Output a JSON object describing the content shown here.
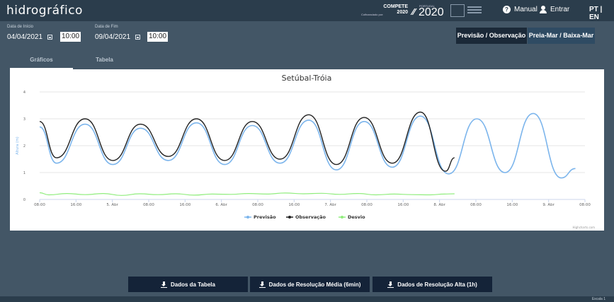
{
  "header": {
    "logo": "hidrográfico",
    "compete_line1": "COMPETE",
    "compete_line2": "2020",
    "compete_small": "Cofinanciado por:",
    "portugal_small": "PORTUGAL",
    "portugal_2020": "2020",
    "manual": "Manual",
    "entrar": "Entrar",
    "lang": "PT | EN"
  },
  "filters": {
    "start_label": "Data de Início",
    "start_date": "04/04/2021",
    "start_time": "10:00",
    "end_label": "Data de Fim",
    "end_date": "09/04/2021",
    "end_time": "10:00"
  },
  "mode_buttons": {
    "prev": "Previsão / Observação",
    "preia": "Preia-Mar / Baixa-Mar"
  },
  "tabs": {
    "graficos": "Gráficos",
    "tabela": "Tabela"
  },
  "downloads": {
    "tabela": "Dados da Tabela",
    "media": "Dados de Resolução Média (6min)",
    "alta": "Dados de Resolução Alta (1h)"
  },
  "footer": {
    "escala": "Escala 1"
  },
  "colors": {
    "previsao": "#7cb5ec",
    "observacao": "#222222",
    "desvio": "#90ed7d",
    "topbar": "#2b3d4c",
    "background": "#435666"
  },
  "chart_data": {
    "type": "line",
    "title": "Setúbal-Tróia",
    "ylabel": "Altura (m)",
    "credits": "Highcharts.com",
    "ylim": [
      0,
      4
    ],
    "y_ticks": [
      "0",
      "1",
      "2",
      "3",
      "4"
    ],
    "x_ticks": [
      "08:00",
      "16:00",
      "5. Abr",
      "08:00",
      "16:00",
      "6. Abr",
      "08:00",
      "16:00",
      "7. Abr",
      "08:00",
      "16:00",
      "8. Abr",
      "08:00",
      "16:00",
      "9. Abr",
      "08:00"
    ],
    "x_start": "2021-04-04 08:00",
    "x_end": "2021-04-09 08:00",
    "legend": [
      "Previsão",
      "Observação",
      "Desvio"
    ],
    "legend_position": "bottom-center",
    "series": [
      {
        "name": "Previsão",
        "points": [
          [
            0.0,
            2.7
          ],
          [
            3.7,
            1.35
          ],
          [
            10.0,
            2.8
          ],
          [
            16.1,
            1.3
          ],
          [
            22.2,
            2.65
          ],
          [
            28.3,
            1.45
          ],
          [
            34.5,
            2.85
          ],
          [
            40.7,
            1.3
          ],
          [
            46.8,
            2.75
          ],
          [
            52.9,
            1.35
          ],
          [
            59.2,
            2.95
          ],
          [
            65.3,
            1.1
          ],
          [
            71.4,
            2.9
          ],
          [
            77.6,
            1.2
          ],
          [
            83.8,
            3.1
          ],
          [
            90.0,
            0.95
          ],
          [
            96.2,
            3.0
          ],
          [
            102.4,
            1.0
          ],
          [
            108.6,
            3.2
          ],
          [
            114.8,
            0.8
          ],
          [
            117.9,
            1.15
          ]
        ]
      },
      {
        "name": "Observação",
        "points": [
          [
            0.0,
            2.9
          ],
          [
            3.7,
            1.55
          ],
          [
            10.0,
            3.0
          ],
          [
            16.1,
            1.45
          ],
          [
            22.2,
            2.8
          ],
          [
            28.3,
            1.6
          ],
          [
            34.5,
            3.0
          ],
          [
            40.7,
            1.45
          ],
          [
            46.8,
            2.9
          ],
          [
            52.9,
            1.5
          ],
          [
            59.2,
            3.15
          ],
          [
            65.3,
            1.3
          ],
          [
            71.4,
            3.05
          ],
          [
            77.6,
            1.35
          ],
          [
            83.8,
            3.25
          ],
          [
            89.3,
            1.05
          ],
          [
            91.3,
            1.55
          ]
        ]
      },
      {
        "name": "Desvio",
        "points": [
          [
            0.0,
            0.25
          ],
          [
            2.0,
            0.17
          ],
          [
            6.0,
            0.22
          ],
          [
            10.0,
            0.18
          ],
          [
            14.0,
            0.22
          ],
          [
            18.0,
            0.15
          ],
          [
            22.0,
            0.21
          ],
          [
            26.0,
            0.18
          ],
          [
            30.0,
            0.21
          ],
          [
            34.0,
            0.16
          ],
          [
            38.0,
            0.2
          ],
          [
            42.0,
            0.19
          ],
          [
            46.0,
            0.22
          ],
          [
            50.0,
            0.2
          ],
          [
            54.0,
            0.24
          ],
          [
            58.0,
            0.21
          ],
          [
            62.0,
            0.23
          ],
          [
            66.0,
            0.19
          ],
          [
            70.0,
            0.22
          ],
          [
            74.0,
            0.17
          ],
          [
            78.0,
            0.2
          ],
          [
            82.0,
            0.18
          ],
          [
            86.0,
            0.17
          ],
          [
            89.0,
            0.2
          ],
          [
            91.3,
            0.21
          ]
        ]
      }
    ]
  }
}
